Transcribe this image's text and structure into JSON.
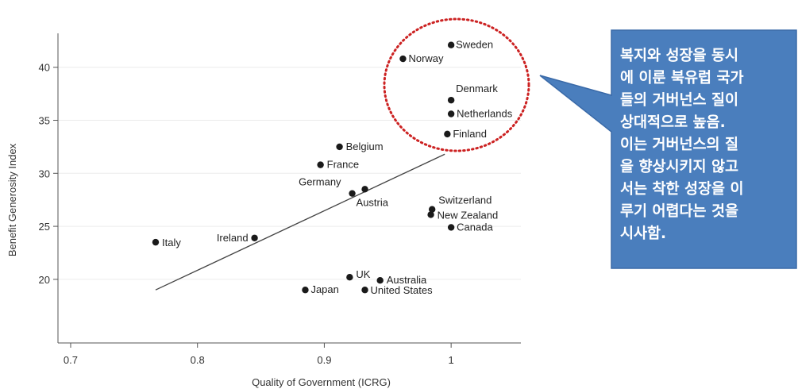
{
  "chart_data": {
    "type": "scatter",
    "title": "",
    "xlabel": "Quality of Government (ICRG)",
    "ylabel": "Benefit Generosity Index",
    "xlim": [
      0.69,
      1.055
    ],
    "ylim": [
      14,
      43.2
    ],
    "xticks": [
      "0.7",
      "0.8",
      "0.9",
      "1"
    ],
    "yticks": [
      "20",
      "25",
      "30",
      "35",
      "40"
    ],
    "grid": "horizontal",
    "points": [
      {
        "label": "Sweden",
        "x": 1.0,
        "y": 42.1
      },
      {
        "label": "Norway",
        "x": 0.962,
        "y": 40.8
      },
      {
        "label": "Denmark",
        "x": 1.0,
        "y": 36.9
      },
      {
        "label": "Netherlands",
        "x": 1.0,
        "y": 35.6
      },
      {
        "label": "Finland",
        "x": 0.997,
        "y": 33.7
      },
      {
        "label": "Belgium",
        "x": 0.912,
        "y": 32.5
      },
      {
        "label": "France",
        "x": 0.897,
        "y": 30.8
      },
      {
        "label": "Germany",
        "x": 0.922,
        "y": 28.1
      },
      {
        "label": "Austria",
        "x": 0.932,
        "y": 28.5
      },
      {
        "label": "Switzerland",
        "x": 0.985,
        "y": 26.6
      },
      {
        "label": "New Zealand",
        "x": 0.984,
        "y": 26.1
      },
      {
        "label": "Canada",
        "x": 1.0,
        "y": 24.9
      },
      {
        "label": "Ireland",
        "x": 0.845,
        "y": 23.9
      },
      {
        "label": "Italy",
        "x": 0.767,
        "y": 23.5
      },
      {
        "label": "UK",
        "x": 0.92,
        "y": 20.2
      },
      {
        "label": "Australia",
        "x": 0.944,
        "y": 19.9
      },
      {
        "label": "Japan",
        "x": 0.885,
        "y": 19.0
      },
      {
        "label": "United States",
        "x": 0.932,
        "y": 19.0
      }
    ],
    "fit_line": {
      "x": [
        0.767,
        0.995
      ],
      "y": [
        19.0,
        31.8
      ]
    },
    "annotation": {
      "highlight": [
        "Sweden",
        "Norway",
        "Denmark",
        "Netherlands",
        "Finland"
      ],
      "highlight_color": "#cc2222",
      "callout_fill": "#4a7ebd",
      "callout_lines": [
        "복지와 성장을 동시",
        "에 이룬 북유럽 국가",
        "들의 거버넌스 질이",
        "상대적으로 높음.",
        "이는 거버넌스의 질",
        "을 향상시키지 않고",
        "서는 착한 성장을 이",
        "루기 어렵다는 것을",
        "시사함."
      ]
    }
  }
}
